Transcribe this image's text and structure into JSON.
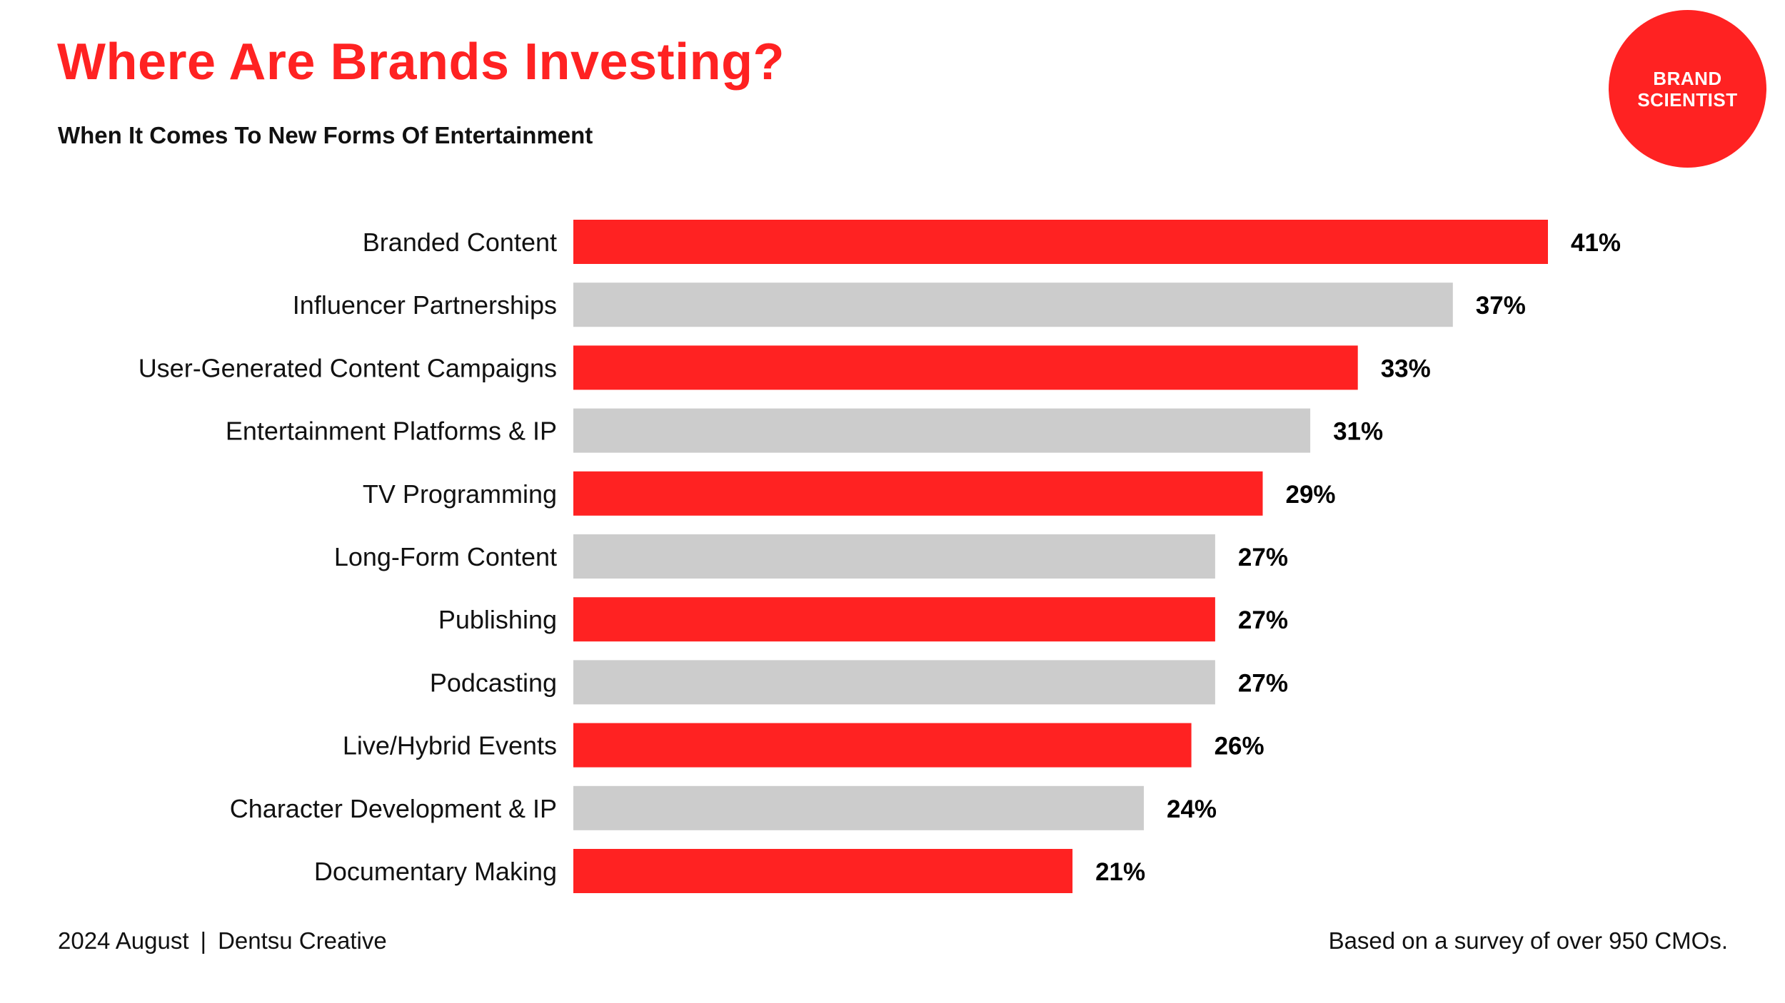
{
  "header": {
    "title": "Where Are Brands Investing?",
    "subtitle": "When It Comes To New Forms Of Entertainment"
  },
  "logo": {
    "line1": "BRAND",
    "line2": "SCIENTIST"
  },
  "footer": {
    "date": "2024 August",
    "separator": "|",
    "source": "Dentsu Creative",
    "note": "Based on a survey of over 950 CMOs."
  },
  "colors": {
    "accent": "#ff2222",
    "alternate_bar": "#cccccc"
  },
  "chart_data": {
    "type": "bar",
    "orientation": "horizontal",
    "title": "Where Are Brands Investing?",
    "subtitle": "When It Comes To New Forms Of Entertainment",
    "xlabel": "",
    "ylabel": "",
    "categories": [
      "Branded Content",
      "Influencer Partnerships",
      "User-Generated Content Campaigns",
      "Entertainment Platforms & IP",
      "TV Programming",
      "Long-Form Content",
      "Publishing",
      "Podcasting",
      "Live/Hybrid Events",
      "Character Development & IP",
      "Documentary Making"
    ],
    "values": [
      41,
      37,
      33,
      31,
      29,
      27,
      27,
      27,
      26,
      24,
      21
    ],
    "value_labels": [
      "41%",
      "37%",
      "33%",
      "31%",
      "29%",
      "27%",
      "27%",
      "27%",
      "26%",
      "24%",
      "21%"
    ],
    "unit": "%",
    "xlim": [
      0,
      41
    ],
    "grid": false,
    "legend": "none",
    "bar_colors": [
      "#ff2222",
      "#cccccc",
      "#ff2222",
      "#cccccc",
      "#ff2222",
      "#cccccc",
      "#ff2222",
      "#cccccc",
      "#ff2222",
      "#cccccc",
      "#ff2222"
    ]
  }
}
